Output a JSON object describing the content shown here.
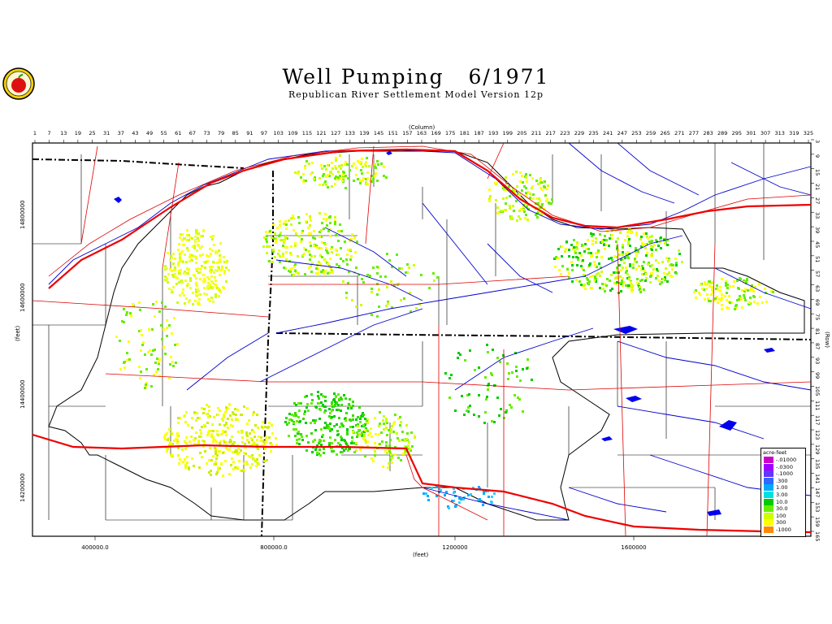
{
  "title": "Well Pumping   6/1971",
  "subtitle": "Republican River Settlement Model Version 12p",
  "axes": {
    "top_title": "(Column)",
    "bottom_title": "(feet)",
    "left_title": "(feet)",
    "right_title": "(Row)",
    "columns": [
      "1",
      "7",
      "13",
      "19",
      "25",
      "31",
      "37",
      "43",
      "49",
      "55",
      "61",
      "67",
      "73",
      "79",
      "85",
      "91",
      "97",
      "103",
      "109",
      "115",
      "121",
      "127",
      "133",
      "139",
      "145",
      "151",
      "157",
      "163",
      "169",
      "175",
      "181",
      "187",
      "193",
      "199",
      "205",
      "211",
      "217",
      "223",
      "229",
      "235",
      "241",
      "247",
      "253",
      "259",
      "265",
      "271",
      "277",
      "283",
      "289",
      "295",
      "301",
      "307",
      "313",
      "319",
      "325"
    ],
    "rows": [
      "3",
      "9",
      "15",
      "21",
      "27",
      "33",
      "39",
      "45",
      "51",
      "57",
      "63",
      "69",
      "75",
      "81",
      "87",
      "93",
      "99",
      "105",
      "111",
      "117",
      "123",
      "129",
      "135",
      "141",
      "147",
      "153",
      "159",
      "165"
    ],
    "x_ticks": [
      "400000.0",
      "800000.0",
      "1200000",
      "1600000"
    ],
    "y_ticks": [
      "14800000",
      "14600000",
      "14400000",
      "14200000"
    ]
  },
  "legend": {
    "title": "acre-feet",
    "items": [
      {
        "label": "-.01000",
        "color": "#cc00cc"
      },
      {
        "label": "-.0300",
        "color": "#a000ff"
      },
      {
        "label": "-.1000",
        "color": "#6633ff"
      },
      {
        "label": ".300",
        "color": "#3366ff"
      },
      {
        "label": "1.00",
        "color": "#00aaff"
      },
      {
        "label": "3.00",
        "color": "#00e0e0"
      },
      {
        "label": "10.0",
        "color": "#00cc00"
      },
      {
        "label": "30.0",
        "color": "#66ee00"
      },
      {
        "label": "100",
        "color": "#ccff00"
      },
      {
        "label": "300",
        "color": "#ffff00"
      },
      {
        "label": "-1000",
        "color": "#ff8800"
      }
    ]
  },
  "colors": {
    "rivers": "#0000cc",
    "roads": "#dd0000",
    "boundaries": "#000000",
    "cell_low": "#ffff00",
    "cell_mid": "#00cc00"
  }
}
